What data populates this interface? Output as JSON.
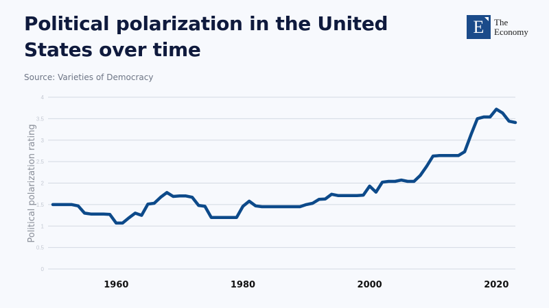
{
  "header": {
    "title": "Political polarization in the United States over time",
    "source": "Source: Varieties of Democracy"
  },
  "logo": {
    "letter": "E",
    "line1": "The",
    "line2": "Economy",
    "color": "#1b4b8a"
  },
  "chart_data": {
    "type": "line",
    "title": "Political polarization in the United States over time",
    "subtitle": "Source: Varieties of Democracy",
    "xlabel": "",
    "ylabel": "Political polarization rating",
    "xlim": [
      1950,
      2023
    ],
    "ylim": [
      0,
      4
    ],
    "yticks": [
      0,
      0.5,
      1,
      1.5,
      2,
      2.5,
      3,
      3.5,
      4
    ],
    "ytick_labels": [
      "0",
      "0.5",
      "1",
      "1.5",
      "2",
      "2.5",
      "3",
      "3.5",
      "4"
    ],
    "xticks": [
      1960,
      1980,
      2000,
      2020
    ],
    "xtick_labels": [
      "1960",
      "1980",
      "2000",
      "2020"
    ],
    "grid": true,
    "legend": "none",
    "line_color": "#0d4a8a",
    "series": [
      {
        "name": "Political polarization rating",
        "x": [
          1950,
          1951,
          1952,
          1953,
          1954,
          1955,
          1956,
          1957,
          1958,
          1959,
          1960,
          1961,
          1962,
          1963,
          1964,
          1965,
          1966,
          1967,
          1968,
          1969,
          1970,
          1971,
          1972,
          1973,
          1974,
          1975,
          1976,
          1977,
          1978,
          1979,
          1980,
          1981,
          1982,
          1983,
          1984,
          1985,
          1986,
          1987,
          1988,
          1989,
          1990,
          1991,
          1992,
          1993,
          1994,
          1995,
          1996,
          1997,
          1998,
          1999,
          2000,
          2001,
          2002,
          2003,
          2004,
          2005,
          2006,
          2007,
          2008,
          2009,
          2010,
          2011,
          2012,
          2013,
          2014,
          2015,
          2016,
          2017,
          2018,
          2019,
          2020,
          2021,
          2022,
          2023
        ],
        "values": [
          1.5,
          1.5,
          1.5,
          1.5,
          1.47,
          1.3,
          1.28,
          1.28,
          1.28,
          1.27,
          1.07,
          1.07,
          1.19,
          1.3,
          1.25,
          1.51,
          1.53,
          1.67,
          1.78,
          1.69,
          1.7,
          1.7,
          1.67,
          1.48,
          1.46,
          1.2,
          1.2,
          1.2,
          1.2,
          1.2,
          1.46,
          1.58,
          1.47,
          1.45,
          1.45,
          1.45,
          1.45,
          1.45,
          1.45,
          1.45,
          1.5,
          1.53,
          1.62,
          1.63,
          1.74,
          1.71,
          1.71,
          1.71,
          1.71,
          1.72,
          1.93,
          1.79,
          2.02,
          2.04,
          2.04,
          2.07,
          2.04,
          2.04,
          2.18,
          2.39,
          2.63,
          2.64,
          2.64,
          2.64,
          2.64,
          2.73,
          3.13,
          3.5,
          3.54,
          3.54,
          3.72,
          3.63,
          3.44,
          3.41
        ]
      }
    ]
  }
}
